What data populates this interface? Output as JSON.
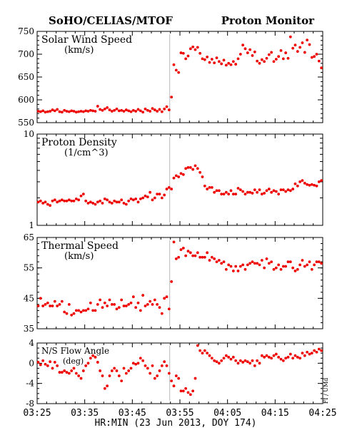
{
  "header": {
    "left_title": "SoHO/CELIAS/MTOF",
    "right_title": "Proton Monitor"
  },
  "footer": {
    "xlabel": "HR:MIN (23 Jun 2013, DOY 174)",
    "side_label": "FI / UMd"
  },
  "colors": {
    "points": "#ee0000",
    "axis": "#000000",
    "marker_line": "#bbbbbb"
  },
  "chart_data": [
    {
      "type": "scatter",
      "title": "Solar Wind Speed",
      "subtitle": "(km/s)",
      "ylim": [
        550,
        750
      ],
      "yscale": "linear",
      "yticks": [
        550,
        600,
        650,
        700,
        750
      ],
      "yticklabels": [
        "550",
        "600",
        "650",
        "700",
        "750"
      ],
      "xlim": [
        "03:25",
        "04:25"
      ],
      "xticks": [
        "03:25",
        "03:35",
        "03:45",
        "03:55",
        "04:05",
        "04:15",
        "04:25"
      ],
      "shock_time": "03:53",
      "x": [
        "03:25",
        "03:25:30",
        "03:26",
        "03:26:30",
        "03:27",
        "03:27:30",
        "03:28",
        "03:28:30",
        "03:29",
        "03:29:30",
        "03:30",
        "03:30:30",
        "03:31",
        "03:31:30",
        "03:32",
        "03:32:30",
        "03:33",
        "03:33:30",
        "03:34",
        "03:34:30",
        "03:35",
        "03:35:30",
        "03:36",
        "03:36:30",
        "03:37",
        "03:37:30",
        "03:38",
        "03:38:30",
        "03:39",
        "03:39:30",
        "03:40",
        "03:40:30",
        "03:41",
        "03:41:30",
        "03:42",
        "03:42:30",
        "03:43",
        "03:43:30",
        "03:44",
        "03:44:30",
        "03:45",
        "03:45:30",
        "03:46",
        "03:46:30",
        "03:47",
        "03:47:30",
        "03:48",
        "03:48:30",
        "03:49",
        "03:49:30",
        "03:50",
        "03:50:30",
        "03:51",
        "03:51:30",
        "03:52",
        "03:52:30",
        "03:53",
        "03:53:30",
        "03:54",
        "03:54:30",
        "03:55",
        "03:55:30",
        "03:56",
        "03:56:30",
        "03:57",
        "03:57:30",
        "03:58",
        "03:58:30",
        "03:59",
        "03:59:30",
        "04:00",
        "04:00:30",
        "04:01",
        "04:01:30",
        "04:02",
        "04:02:30",
        "04:03",
        "04:03:30",
        "04:04",
        "04:04:30",
        "04:05",
        "04:05:30",
        "04:06",
        "04:06:30",
        "04:07",
        "04:07:30",
        "04:08",
        "04:08:30",
        "04:09",
        "04:09:30",
        "04:10",
        "04:10:30",
        "04:11",
        "04:11:30",
        "04:12",
        "04:12:30",
        "04:13",
        "04:13:30",
        "04:14",
        "04:14:30",
        "04:15",
        "04:15:30",
        "04:16",
        "04:16:30",
        "04:17",
        "04:17:30",
        "04:18",
        "04:18:30",
        "04:19",
        "04:19:30",
        "04:20",
        "04:20:30",
        "04:21",
        "04:21:30",
        "04:22",
        "04:22:30",
        "04:23",
        "04:23:30",
        "04:24",
        "04:24:30"
      ],
      "y": [
        575,
        574,
        576,
        573,
        574,
        575,
        578,
        576,
        579,
        574,
        573,
        577,
        575,
        574,
        576,
        575,
        573,
        574,
        575,
        574,
        576,
        575,
        577,
        576,
        575,
        586,
        579,
        577,
        580,
        583,
        578,
        575,
        577,
        580,
        576,
        577,
        575,
        578,
        576,
        574,
        577,
        575,
        579,
        576,
        573,
        580,
        577,
        575,
        581,
        578,
        575,
        579,
        574,
        580,
        585,
        578,
        606,
        677,
        665,
        660,
        703,
        702,
        690,
        696,
        712,
        716,
        710,
        715,
        702,
        690,
        688,
        694,
        682,
        689,
        681,
        692,
        684,
        679,
        687,
        676,
        680,
        677,
        684,
        678,
        690,
        700,
        720,
        712,
        703,
        710,
        697,
        705,
        685,
        680,
        688,
        684,
        691,
        699,
        704,
        684,
        689,
        695,
        708,
        690,
        703,
        691,
        738,
        713,
        720,
        706,
        715,
        725,
        704,
        731,
        721,
        693,
        695,
        700,
        685,
        670
      ]
    },
    {
      "type": "scatter",
      "title": "Proton Density",
      "subtitle": "(1/cm^3)",
      "ylim": [
        1,
        10
      ],
      "yscale": "log",
      "yticks": [
        1,
        10
      ],
      "yticklabels": [
        "1",
        "10"
      ],
      "xlim": [
        "03:25",
        "04:25"
      ],
      "xticks": [
        "03:25",
        "03:35",
        "03:45",
        "03:55",
        "04:05",
        "04:15",
        "04:25"
      ],
      "shock_time": "03:53",
      "x": [
        "03:25",
        "03:25:30",
        "03:26",
        "03:26:30",
        "03:27",
        "03:27:30",
        "03:28",
        "03:28:30",
        "03:29",
        "03:29:30",
        "03:30",
        "03:30:30",
        "03:31",
        "03:31:30",
        "03:32",
        "03:32:30",
        "03:33",
        "03:33:30",
        "03:34",
        "03:34:30",
        "03:35",
        "03:35:30",
        "03:36",
        "03:36:30",
        "03:37",
        "03:37:30",
        "03:38",
        "03:38:30",
        "03:39",
        "03:39:30",
        "03:40",
        "03:40:30",
        "03:41",
        "03:41:30",
        "03:42",
        "03:42:30",
        "03:43",
        "03:43:30",
        "03:44",
        "03:44:30",
        "03:45",
        "03:45:30",
        "03:46",
        "03:46:30",
        "03:47",
        "03:47:30",
        "03:48",
        "03:48:30",
        "03:49",
        "03:49:30",
        "03:50",
        "03:50:30",
        "03:51",
        "03:51:30",
        "03:52",
        "03:52:30",
        "03:53",
        "03:53:30",
        "03:54",
        "03:54:30",
        "03:55",
        "03:55:30",
        "03:56",
        "03:56:30",
        "03:57",
        "03:57:30",
        "03:58",
        "03:58:30",
        "03:59",
        "03:59:30",
        "04:00",
        "04:00:30",
        "04:01",
        "04:01:30",
        "04:02",
        "04:02:30",
        "04:03",
        "04:03:30",
        "04:04",
        "04:04:30",
        "04:05",
        "04:05:30",
        "04:06",
        "04:06:30",
        "04:07",
        "04:07:30",
        "04:08",
        "04:08:30",
        "04:09",
        "04:09:30",
        "04:10",
        "04:10:30",
        "04:11",
        "04:11:30",
        "04:12",
        "04:12:30",
        "04:13",
        "04:13:30",
        "04:14",
        "04:14:30",
        "04:15",
        "04:15:30",
        "04:16",
        "04:16:30",
        "04:17",
        "04:17:30",
        "04:18",
        "04:18:30",
        "04:19",
        "04:19:30",
        "04:20",
        "04:20:30",
        "04:21",
        "04:21:30",
        "04:22",
        "04:22:30",
        "04:23",
        "04:23:30",
        "04:24",
        "04:24:30"
      ],
      "y": [
        1.8,
        1.85,
        1.75,
        1.8,
        1.7,
        1.65,
        1.85,
        1.9,
        1.8,
        1.85,
        1.9,
        1.85,
        1.85,
        1.9,
        1.85,
        1.85,
        1.95,
        1.9,
        2.1,
        2.2,
        1.85,
        1.75,
        1.8,
        1.75,
        1.7,
        1.8,
        1.85,
        1.75,
        1.95,
        1.9,
        1.8,
        1.75,
        1.85,
        1.8,
        1.8,
        1.9,
        1.75,
        1.7,
        1.85,
        1.95,
        1.9,
        1.95,
        1.8,
        1.95,
        2.0,
        2.1,
        2.05,
        2.3,
        1.9,
        2.0,
        2.2,
        2.2,
        2.0,
        2.15,
        2.5,
        2.6,
        2.5,
        3.3,
        3.5,
        3.4,
        3.7,
        3.6,
        4.2,
        4.3,
        4.3,
        4.1,
        4.5,
        4.2,
        3.8,
        3.4,
        2.7,
        2.5,
        2.6,
        2.6,
        2.3,
        2.4,
        2.4,
        2.2,
        2.2,
        2.3,
        2.2,
        2.4,
        2.2,
        2.2,
        2.55,
        2.45,
        2.35,
        2.2,
        2.3,
        2.3,
        2.25,
        2.45,
        2.3,
        2.45,
        2.2,
        2.25,
        2.4,
        2.5,
        2.3,
        2.4,
        2.35,
        2.2,
        2.45,
        2.45,
        2.35,
        2.45,
        2.4,
        2.5,
        2.85,
        2.7,
        3.0,
        3.1,
        2.9,
        2.8,
        2.75,
        2.8,
        2.75,
        2.7,
        3.0,
        3.1
      ]
    },
    {
      "type": "scatter",
      "title": "Thermal Speed",
      "subtitle": "(km/s)",
      "ylim": [
        35,
        65
      ],
      "yscale": "linear",
      "yticks": [
        35,
        45,
        55,
        65
      ],
      "yticklabels": [
        "35",
        "45",
        "55",
        "65"
      ],
      "xlim": [
        "03:25",
        "04:25"
      ],
      "xticks": [
        "03:25",
        "03:35",
        "03:45",
        "03:55",
        "04:05",
        "04:15",
        "04:25"
      ],
      "shock_time": "03:53",
      "x": [
        "03:25",
        "03:25:30",
        "03:26",
        "03:26:30",
        "03:27",
        "03:27:30",
        "03:28",
        "03:28:30",
        "03:29",
        "03:29:30",
        "03:30",
        "03:30:30",
        "03:31",
        "03:31:30",
        "03:32",
        "03:32:30",
        "03:33",
        "03:33:30",
        "03:34",
        "03:34:30",
        "03:35",
        "03:35:30",
        "03:36",
        "03:36:30",
        "03:37",
        "03:37:30",
        "03:38",
        "03:38:30",
        "03:39",
        "03:39:30",
        "03:40",
        "03:40:30",
        "03:41",
        "03:41:30",
        "03:42",
        "03:42:30",
        "03:43",
        "03:43:30",
        "03:44",
        "03:44:30",
        "03:45",
        "03:45:30",
        "03:46",
        "03:46:30",
        "03:47",
        "03:47:30",
        "03:48",
        "03:48:30",
        "03:49",
        "03:49:30",
        "03:50",
        "03:50:30",
        "03:51",
        "03:51:30",
        "03:52",
        "03:52:30",
        "03:53",
        "03:53:30",
        "03:54",
        "03:54:30",
        "03:55",
        "03:55:30",
        "03:56",
        "03:56:30",
        "03:57",
        "03:57:30",
        "03:58",
        "03:58:30",
        "03:59",
        "03:59:30",
        "04:00",
        "04:00:30",
        "04:01",
        "04:01:30",
        "04:02",
        "04:02:30",
        "04:03",
        "04:03:30",
        "04:04",
        "04:04:30",
        "04:05",
        "04:05:30",
        "04:06",
        "04:06:30",
        "04:07",
        "04:07:30",
        "04:08",
        "04:08:30",
        "04:09",
        "04:09:30",
        "04:10",
        "04:10:30",
        "04:11",
        "04:11:30",
        "04:12",
        "04:12:30",
        "04:13",
        "04:13:30",
        "04:14",
        "04:14:30",
        "04:15",
        "04:15:30",
        "04:16",
        "04:16:30",
        "04:17",
        "04:17:30",
        "04:18",
        "04:18:30",
        "04:19",
        "04:19:30",
        "04:20",
        "04:20:30",
        "04:21",
        "04:21:30",
        "04:22",
        "04:22:30",
        "04:23",
        "04:23:30",
        "04:24",
        "04:24:30"
      ],
      "y": [
        42.5,
        45.0,
        42.5,
        43.0,
        43.5,
        42.5,
        42.5,
        44.0,
        42.5,
        43.0,
        44.0,
        40.5,
        40.0,
        43.0,
        39.5,
        40.0,
        41.0,
        41.0,
        40.5,
        41.0,
        41.0,
        41.5,
        43.5,
        41.0,
        41.0,
        43.0,
        44.5,
        42.0,
        43.5,
        42.5,
        44.5,
        43.0,
        43.0,
        41.5,
        42.0,
        44.5,
        42.5,
        42.5,
        43.0,
        43.5,
        45.5,
        42.0,
        43.5,
        41.0,
        46.0,
        42.5,
        43.0,
        44.0,
        43.0,
        44.5,
        43.0,
        42.0,
        40.0,
        45.0,
        45.5,
        41.5,
        50.5,
        63.5,
        58.0,
        58.5,
        61.0,
        61.5,
        59.0,
        60.5,
        60.0,
        59.0,
        59.0,
        60.0,
        58.5,
        58.5,
        58.5,
        60.0,
        57.5,
        58.5,
        58.0,
        57.0,
        57.5,
        56.5,
        57.0,
        54.5,
        56.0,
        55.5,
        54.0,
        55.5,
        54.0,
        55.5,
        56.0,
        54.5,
        56.0,
        56.5,
        57.0,
        56.5,
        56.5,
        56.0,
        57.5,
        55.0,
        58.0,
        56.5,
        57.0,
        54.5,
        55.0,
        56.0,
        54.5,
        55.5,
        55.5,
        57.0,
        57.0,
        55.0,
        54.0,
        54.5,
        56.0,
        57.5,
        55.5,
        56.0,
        57.0,
        54.5,
        56.0,
        57.0,
        57.0,
        56.5
      ]
    },
    {
      "type": "scatter",
      "title": "N/S Flow Angle",
      "subtitle": "(deg)",
      "ylim": [
        -8,
        4
      ],
      "yscale": "linear",
      "yticks": [
        -8,
        -4,
        0,
        4
      ],
      "yticklabels": [
        "-8",
        "-4",
        "0",
        "4"
      ],
      "xlim": [
        "03:25",
        "04:25"
      ],
      "xticks": [
        "03:25",
        "03:35",
        "03:45",
        "03:55",
        "04:05",
        "04:15",
        "04:25"
      ],
      "xticklabels": [
        "03:25",
        "03:35",
        "03:45",
        "03:55",
        "04:05",
        "04:15",
        "04:25"
      ],
      "shock_time": "03:53",
      "x": [
        "03:25",
        "03:25:30",
        "03:26",
        "03:26:30",
        "03:27",
        "03:27:30",
        "03:28",
        "03:28:30",
        "03:29",
        "03:29:30",
        "03:30",
        "03:30:30",
        "03:31",
        "03:31:30",
        "03:32",
        "03:32:30",
        "03:33",
        "03:33:30",
        "03:34",
        "03:34:30",
        "03:35",
        "03:35:30",
        "03:36",
        "03:36:30",
        "03:37",
        "03:37:30",
        "03:38",
        "03:38:30",
        "03:39",
        "03:39:30",
        "03:40",
        "03:40:30",
        "03:41",
        "03:41:30",
        "03:42",
        "03:42:30",
        "03:43",
        "03:43:30",
        "03:44",
        "03:44:30",
        "03:45",
        "03:45:30",
        "03:46",
        "03:46:30",
        "03:47",
        "03:47:30",
        "03:48",
        "03:48:30",
        "03:49",
        "03:49:30",
        "03:50",
        "03:50:30",
        "03:51",
        "03:51:30",
        "03:52",
        "03:52:30",
        "03:53",
        "03:53:30",
        "03:54",
        "03:54:30",
        "03:55",
        "03:55:30",
        "03:56",
        "03:56:30",
        "03:57",
        "03:57:30",
        "03:58",
        "03:58:30",
        "03:59",
        "03:59:30",
        "04:00",
        "04:00:30",
        "04:01",
        "04:01:30",
        "04:02",
        "04:02:30",
        "04:03",
        "04:03:30",
        "04:04",
        "04:04:30",
        "04:05",
        "04:05:30",
        "04:06",
        "04:06:30",
        "04:07",
        "04:07:30",
        "04:08",
        "04:08:30",
        "04:09",
        "04:09:30",
        "04:10",
        "04:10:30",
        "04:11",
        "04:11:30",
        "04:12",
        "04:12:30",
        "04:13",
        "04:13:30",
        "04:14",
        "04:14:30",
        "04:15",
        "04:15:30",
        "04:16",
        "04:16:30",
        "04:17",
        "04:17:30",
        "04:18",
        "04:18:30",
        "04:19",
        "04:19:30",
        "04:20",
        "04:20:30",
        "04:21",
        "04:21:30",
        "04:22",
        "04:22:30",
        "04:23",
        "04:23:30",
        "04:24",
        "04:24:30"
      ],
      "y": [
        0.2,
        -0.3,
        0.5,
        -0.2,
        -0.5,
        0.3,
        -1.0,
        0.2,
        -0.5,
        -1.8,
        -1.8,
        -1.5,
        -1.8,
        -2.0,
        -1.5,
        -1.0,
        -2.0,
        -2.5,
        -3.0,
        -1.5,
        -0.5,
        0.0,
        1.0,
        1.5,
        1.2,
        0.2,
        -1.5,
        -2.5,
        -5.0,
        -4.5,
        -2.5,
        -1.5,
        -1.0,
        -1.5,
        -2.5,
        -3.5,
        -1.0,
        -2.0,
        -1.5,
        -1.0,
        0.0,
        -0.2,
        0.0,
        1.0,
        0.5,
        -0.5,
        -1.0,
        -2.0,
        -0.5,
        -3.0,
        -2.5,
        -1.5,
        -0.5,
        0.3,
        -0.5,
        -2.0,
        -3.5,
        -4.5,
        -2.5,
        -3.0,
        -5.5,
        -5.5,
        -5.0,
        -5.8,
        -6.2,
        -5.5,
        -3.0,
        3.5,
        2.5,
        2.0,
        2.5,
        2.0,
        1.5,
        1.0,
        0.5,
        0.3,
        0.0,
        0.5,
        1.0,
        1.5,
        1.2,
        0.8,
        1.2,
        0.5,
        0.0,
        0.5,
        0.2,
        0.5,
        0.3,
        0.0,
        0.5,
        -0.5,
        0.5,
        0.0,
        1.5,
        1.2,
        1.5,
        1.2,
        1.0,
        1.5,
        1.8,
        1.2,
        0.8,
        0.5,
        1.0,
        1.2,
        1.8,
        1.0,
        1.5,
        1.2,
        1.0,
        2.0,
        1.5,
        2.2,
        1.8,
        2.0,
        2.5,
        2.2,
        2.8,
        2.5
      ]
    }
  ]
}
